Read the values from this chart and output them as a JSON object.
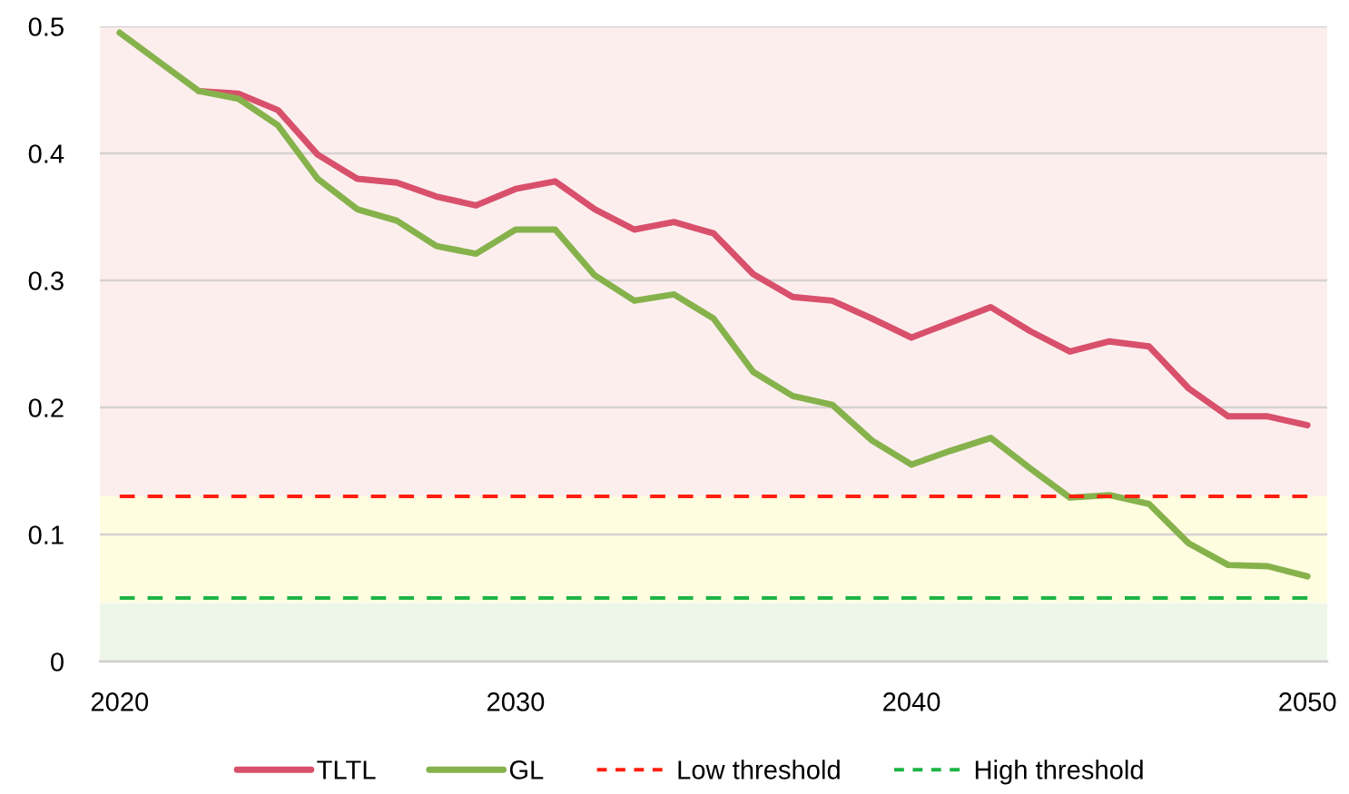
{
  "chart_data": {
    "type": "line",
    "x": [
      2020,
      2021,
      2022,
      2023,
      2024,
      2025,
      2026,
      2027,
      2028,
      2029,
      2030,
      2031,
      2032,
      2033,
      2034,
      2035,
      2036,
      2037,
      2038,
      2039,
      2040,
      2041,
      2042,
      2043,
      2044,
      2045,
      2046,
      2047,
      2048,
      2049,
      2050
    ],
    "series": [
      {
        "name": "TLTL",
        "color": "#d8506b",
        "values": [
          null,
          null,
          0.449,
          0.447,
          0.434,
          0.399,
          0.38,
          0.377,
          0.366,
          0.359,
          0.372,
          0.378,
          0.356,
          0.34,
          0.346,
          0.337,
          0.305,
          0.287,
          0.284,
          0.27,
          0.255,
          0.267,
          0.279,
          0.26,
          0.244,
          0.252,
          0.248,
          0.215,
          0.193,
          0.193,
          0.186
        ]
      },
      {
        "name": "GL",
        "color": "#86b24c",
        "values": [
          0.495,
          0.472,
          0.449,
          0.443,
          0.422,
          0.38,
          0.356,
          0.347,
          0.327,
          0.321,
          0.34,
          0.34,
          0.304,
          0.284,
          0.289,
          0.27,
          0.228,
          0.209,
          0.202,
          0.174,
          0.155,
          0.166,
          0.176,
          0.152,
          0.129,
          0.131,
          0.124,
          0.093,
          0.076,
          0.075,
          0.067
        ]
      },
      {
        "name": "Low threshold",
        "color": "#ff1f0f",
        "line_style": "dashed",
        "values": [
          0.13,
          0.13,
          0.13,
          0.13,
          0.13,
          0.13,
          0.13,
          0.13,
          0.13,
          0.13,
          0.13,
          0.13,
          0.13,
          0.13,
          0.13,
          0.13,
          0.13,
          0.13,
          0.13,
          0.13,
          0.13,
          0.13,
          0.13,
          0.13,
          0.13,
          0.13,
          0.13,
          0.13,
          0.13,
          0.13,
          0.13
        ]
      },
      {
        "name": "High threshold",
        "color": "#1db446",
        "line_style": "dashed",
        "values": [
          0.05,
          0.05,
          0.05,
          0.05,
          0.05,
          0.05,
          0.05,
          0.05,
          0.05,
          0.05,
          0.05,
          0.05,
          0.05,
          0.05,
          0.05,
          0.05,
          0.05,
          0.05,
          0.05,
          0.05,
          0.05,
          0.05,
          0.05,
          0.05,
          0.05,
          0.05,
          0.05,
          0.05,
          0.05,
          0.05,
          0.05
        ]
      }
    ],
    "bands": [
      {
        "axis": "y",
        "from": 0,
        "to": 0.046,
        "color": "#eef6ea"
      },
      {
        "axis": "y",
        "from": 0.046,
        "to": 0.13,
        "color": "#fffde0"
      },
      {
        "axis": "y",
        "from": 0.13,
        "to": 0.5,
        "color": "#fdeeee"
      }
    ],
    "xlim": [
      2019.5,
      2050.5
    ],
    "xticks": [
      2020,
      2030,
      2040,
      2050
    ],
    "ylim": [
      0,
      0.5
    ],
    "yticks": [
      0,
      0.1,
      0.2,
      0.3,
      0.4,
      0.5
    ],
    "grid": "y",
    "legend": "bottom"
  }
}
